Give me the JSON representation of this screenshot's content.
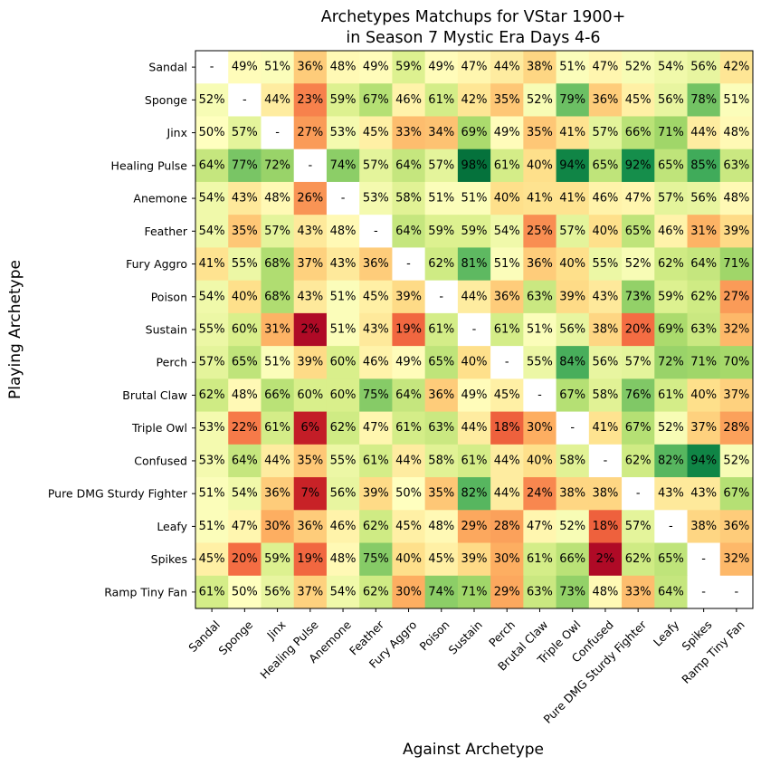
{
  "chart_data": {
    "type": "heatmap",
    "title_lines": [
      "Archetypes Matchups for VStar 1900+",
      "in Season 7 Mystic Era Days 4-6"
    ],
    "xlabel": "Against Archetype",
    "ylabel": "Playing Archetype",
    "categories": [
      "Sandal",
      "Sponge",
      "Jinx",
      "Healing Pulse",
      "Anemone",
      "Feather",
      "Fury Aggro",
      "Poison",
      "Sustain",
      "Perch",
      "Brutal Claw",
      "Triple Owl",
      "Confused",
      "Pure DMG Sturdy Fighter",
      "Leafy",
      "Spikes",
      "Ramp Tiny Fan"
    ],
    "colormap": "RdYlGn",
    "value_range": [
      0,
      100
    ],
    "values": [
      [
        null,
        49,
        51,
        36,
        48,
        49,
        59,
        49,
        47,
        44,
        38,
        51,
        47,
        52,
        54,
        56,
        42
      ],
      [
        52,
        null,
        44,
        23,
        59,
        67,
        46,
        61,
        42,
        35,
        52,
        79,
        36,
        45,
        56,
        78,
        51
      ],
      [
        50,
        57,
        null,
        27,
        53,
        45,
        33,
        34,
        69,
        49,
        35,
        41,
        57,
        66,
        71,
        44,
        48
      ],
      [
        64,
        77,
        72,
        null,
        74,
        57,
        64,
        57,
        98,
        61,
        40,
        94,
        65,
        92,
        65,
        85,
        63
      ],
      [
        54,
        43,
        48,
        26,
        null,
        53,
        58,
        51,
        51,
        40,
        41,
        41,
        46,
        47,
        57,
        56,
        48
      ],
      [
        54,
        35,
        57,
        43,
        48,
        null,
        64,
        59,
        59,
        54,
        25,
        57,
        40,
        65,
        46,
        31,
        39
      ],
      [
        41,
        55,
        68,
        37,
        43,
        36,
        null,
        62,
        81,
        51,
        36,
        40,
        55,
        52,
        62,
        64,
        71
      ],
      [
        54,
        40,
        68,
        43,
        51,
        45,
        39,
        null,
        44,
        36,
        63,
        39,
        43,
        73,
        59,
        62,
        27
      ],
      [
        55,
        60,
        31,
        2,
        51,
        43,
        19,
        61,
        null,
        61,
        51,
        56,
        38,
        20,
        69,
        63,
        32
      ],
      [
        57,
        65,
        51,
        39,
        60,
        46,
        49,
        65,
        40,
        null,
        55,
        84,
        56,
        57,
        72,
        71,
        70
      ],
      [
        62,
        48,
        66,
        60,
        60,
        75,
        64,
        36,
        49,
        45,
        null,
        67,
        58,
        76,
        61,
        40,
        37
      ],
      [
        53,
        22,
        61,
        6,
        62,
        47,
        61,
        63,
        44,
        18,
        30,
        null,
        41,
        67,
        52,
        37,
        28
      ],
      [
        53,
        64,
        44,
        35,
        55,
        61,
        44,
        58,
        61,
        44,
        40,
        58,
        null,
        62,
        82,
        94,
        52
      ],
      [
        51,
        54,
        36,
        7,
        56,
        39,
        50,
        35,
        82,
        44,
        24,
        38,
        38,
        null,
        43,
        43,
        67
      ],
      [
        51,
        47,
        30,
        36,
        46,
        62,
        45,
        48,
        29,
        28,
        47,
        52,
        18,
        57,
        null,
        38,
        36
      ],
      [
        45,
        20,
        59,
        19,
        48,
        75,
        40,
        45,
        39,
        30,
        61,
        66,
        2,
        62,
        65,
        null,
        32
      ],
      [
        61,
        50,
        56,
        37,
        54,
        62,
        30,
        74,
        71,
        29,
        63,
        73,
        48,
        33,
        64,
        null,
        null
      ]
    ],
    "missing_label": "-",
    "value_suffix": "%"
  }
}
